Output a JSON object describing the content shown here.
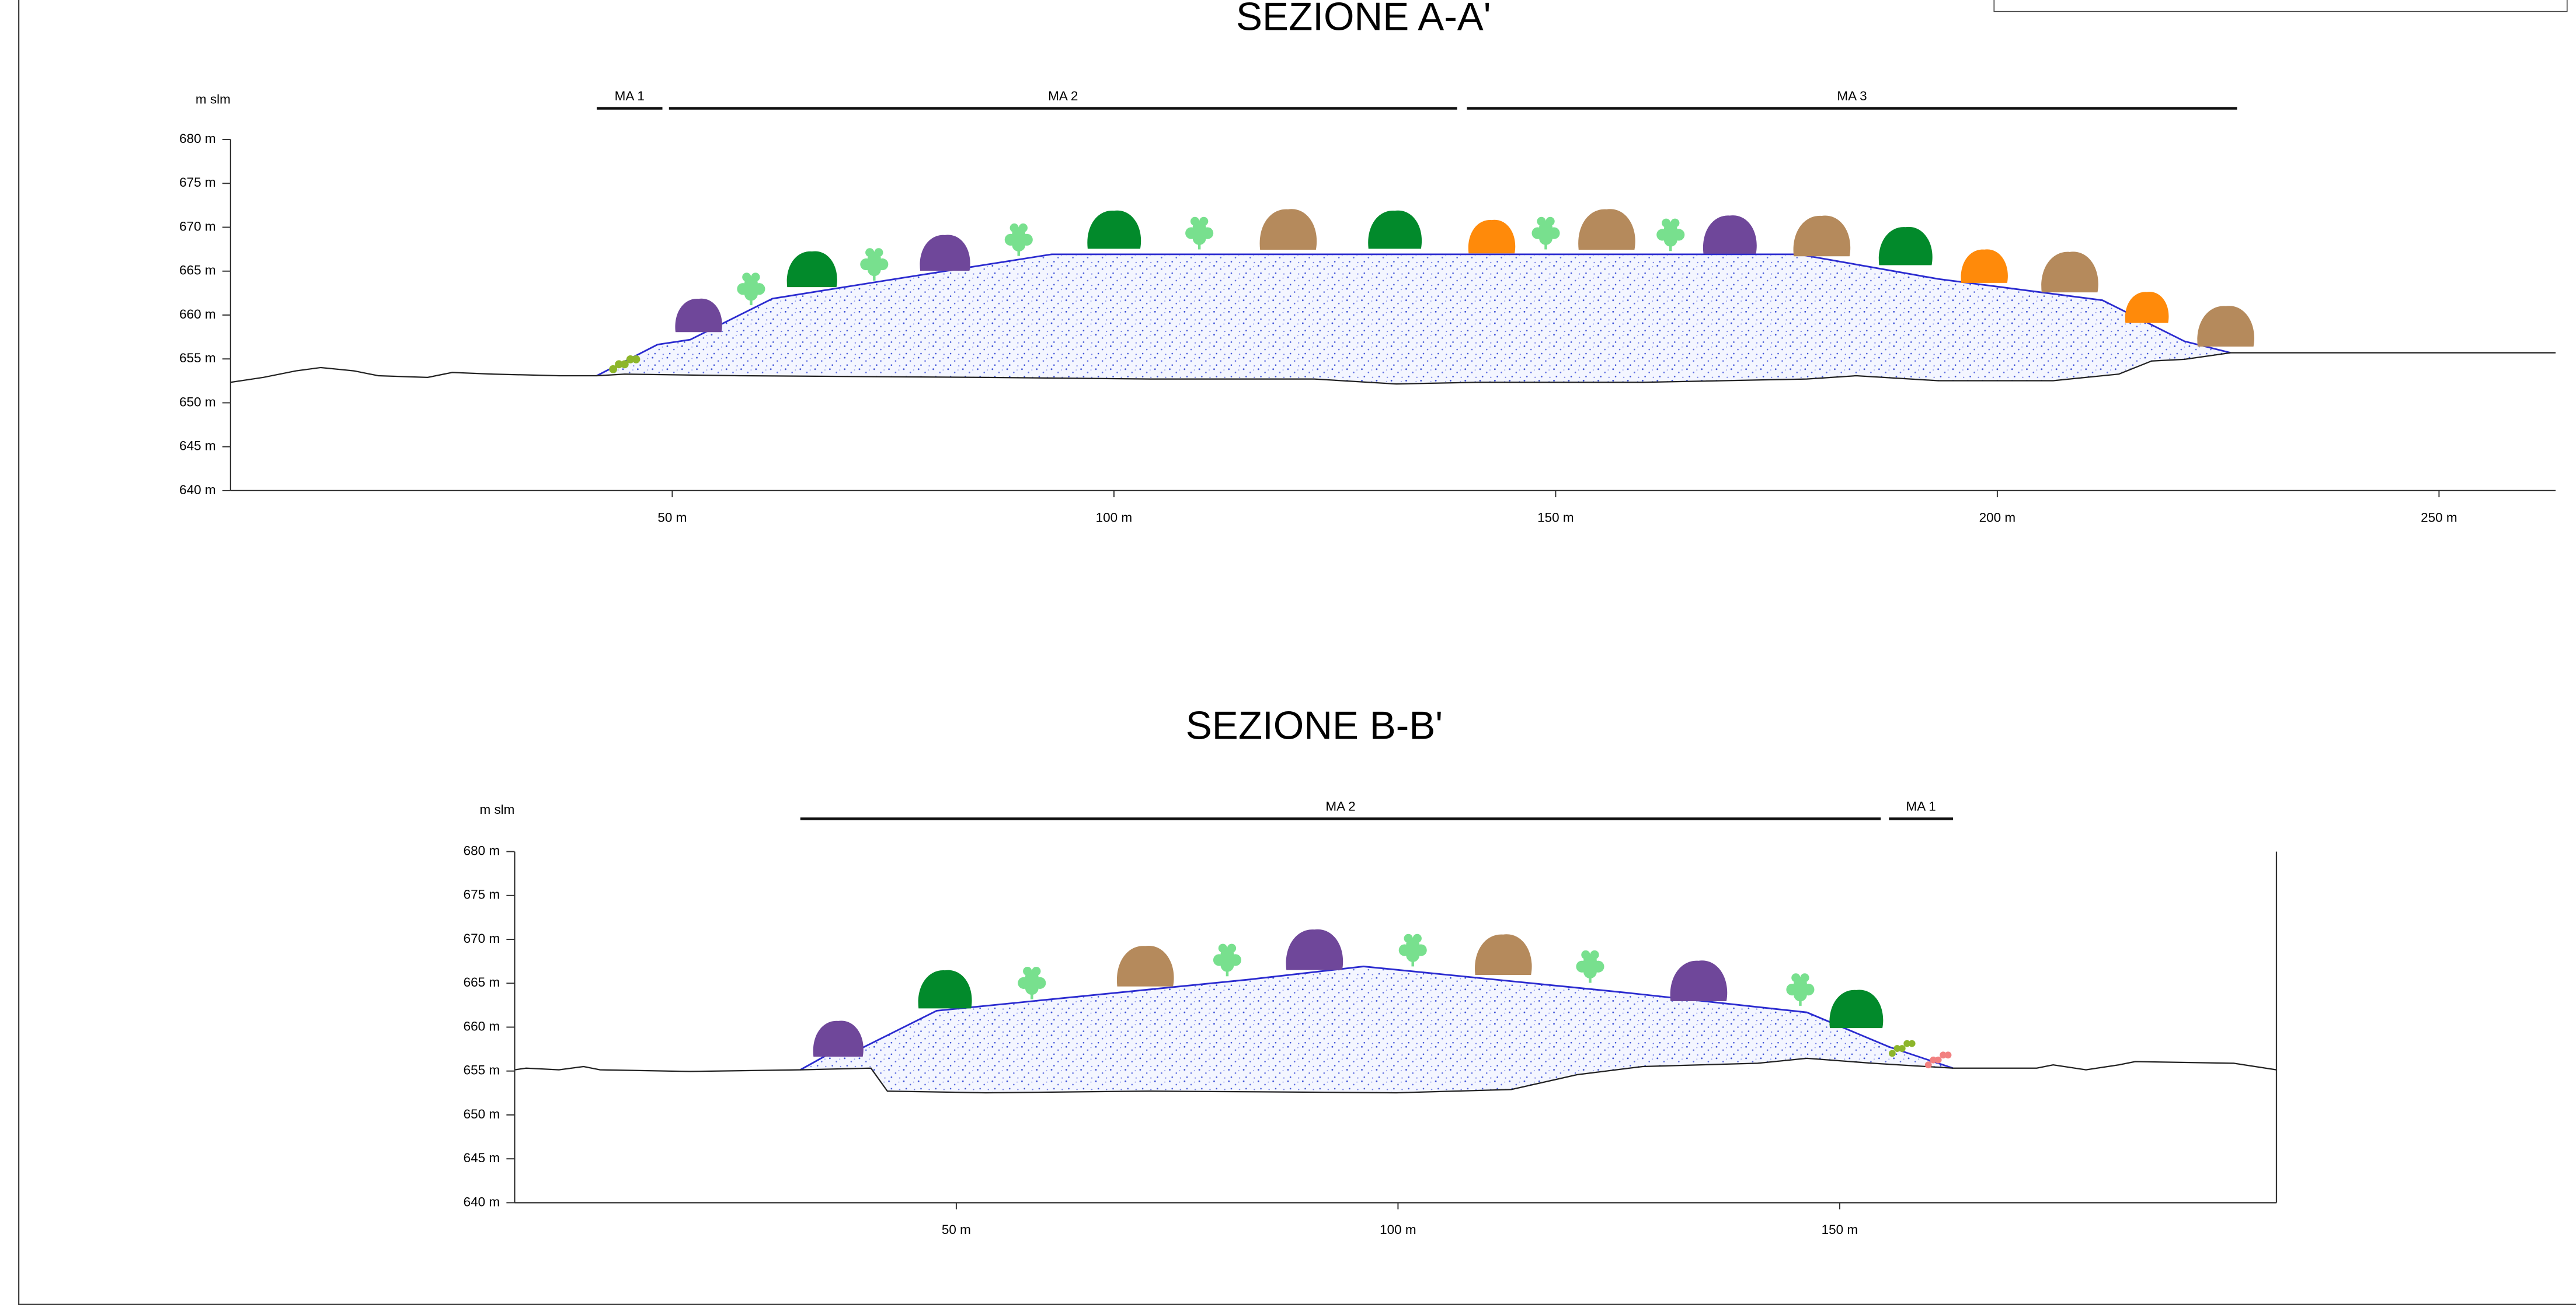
{
  "sections": [
    {
      "title": "SEZIONE A-A'",
      "unit": "m slm",
      "y_labels": [
        "680 m",
        "675 m",
        "670 m",
        "665 m",
        "660 m",
        "655 m",
        "650 m",
        "645 m",
        "640 m"
      ],
      "x_labels": [
        "50 m",
        "100 m",
        "150 m",
        "200 m",
        "250 m"
      ],
      "zones": [
        "MA 1",
        "MA 2",
        "MA 3"
      ]
    },
    {
      "title": "SEZIONE B-B'",
      "unit": "m slm",
      "y_labels": [
        "680 m",
        "675 m",
        "670 m",
        "665 m",
        "660 m",
        "655 m",
        "650 m",
        "645 m",
        "640 m"
      ],
      "x_labels": [
        "50 m",
        "100 m",
        "150 m"
      ],
      "zones": [
        "MA 2",
        "MA 1"
      ]
    }
  ]
}
